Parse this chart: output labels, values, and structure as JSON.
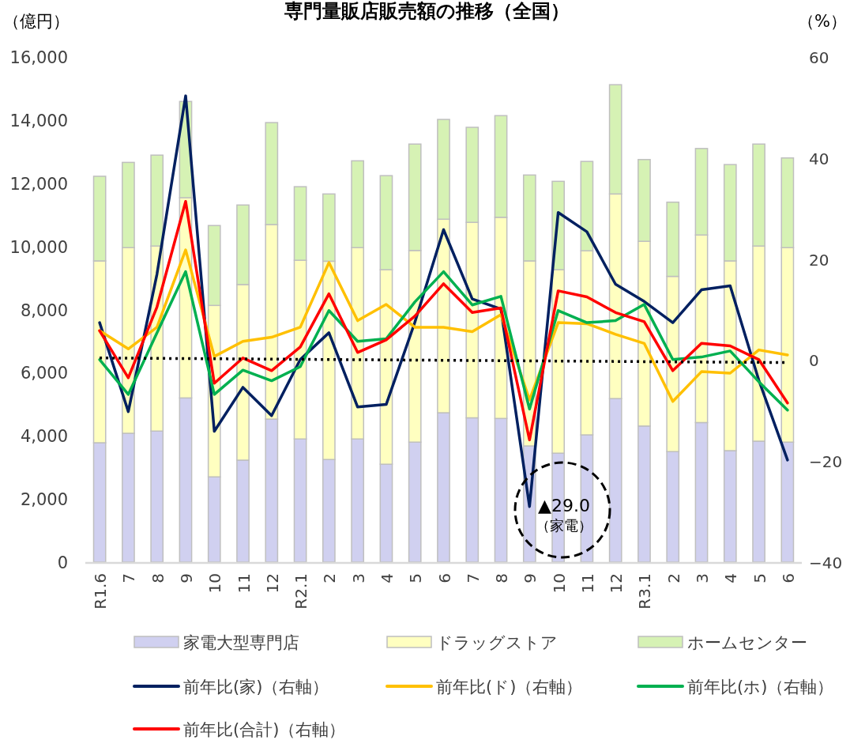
{
  "chart_data": {
    "type": "bar",
    "stacked": true,
    "title": "専門量販店販売額の推移（全国）",
    "ylabel": "（億円）",
    "y2label": "（%）",
    "categories": [
      "R1.6",
      "7",
      "8",
      "9",
      "10",
      "11",
      "12",
      "R2.1",
      "2",
      "3",
      "4",
      "5",
      "6",
      "7",
      "8",
      "9",
      "10",
      "11",
      "12",
      "R3.1",
      "2",
      "3",
      "4",
      "5",
      "6"
    ],
    "ylim": [
      0,
      16000
    ],
    "yticks": [
      0,
      {
        "value": 2000,
        "label": "2,000"
      },
      {
        "value": 4000,
        "label": "4,000"
      },
      {
        "value": 6000,
        "label": "6,000"
      },
      {
        "value": 8000,
        "label": "8,000"
      },
      {
        "value": 10000,
        "label": "10,000"
      },
      {
        "value": 12000,
        "label": "12,000"
      },
      {
        "value": 14000,
        "label": "14,000"
      },
      {
        "value": 16000,
        "label": "16,000"
      }
    ],
    "y2lim": [
      -40,
      60
    ],
    "y2ticks": [
      {
        "value": -40,
        "label": "−40"
      },
      {
        "value": -20,
        "label": "−20"
      },
      0,
      20,
      40,
      60
    ],
    "grid": false,
    "legend": "bottom",
    "series": [
      {
        "name": "家電大型専門店",
        "type": "bar",
        "color": "#d0d0f0",
        "values": [
          3780,
          4080,
          4150,
          5200,
          2700,
          3230,
          4530,
          3900,
          3250,
          3900,
          3100,
          3800,
          4730,
          4570,
          4550,
          3680,
          3450,
          4030,
          5180,
          4310,
          3500,
          4420,
          3530,
          3830,
          3800
        ]
      },
      {
        "name": "ドラッグストア",
        "type": "bar",
        "color": "#ffffc0",
        "values": [
          5760,
          5880,
          5860,
          6340,
          5430,
          5560,
          6160,
          5660,
          6280,
          6060,
          6160,
          6070,
          6130,
          6190,
          6370,
          5860,
          5810,
          5830,
          6480,
          5850,
          5550,
          5940,
          6010,
          6180,
          6160
        ]
      },
      {
        "name": "ホームセンター",
        "type": "bar",
        "color": "#d6f2b4",
        "values": [
          2680,
          2700,
          2880,
          3050,
          2530,
          2520,
          3230,
          2330,
          2130,
          2750,
          2980,
          3370,
          3160,
          3010,
          3220,
          2720,
          2800,
          2830,
          3460,
          2590,
          2350,
          2740,
          3050,
          3230,
          2840
        ]
      },
      {
        "name": "前年比(家)（右軸）",
        "type": "line",
        "axis": "y2",
        "color": "#002060",
        "values": [
          7.4,
          -10.2,
          17.0,
          52.3,
          -14.1,
          -5.4,
          -11.0,
          0.1,
          5.4,
          -9.3,
          -8.8,
          7.5,
          25.8,
          12.1,
          10.1,
          -29.0,
          29.2,
          25.4,
          15.0,
          11.6,
          7.4,
          13.9,
          14.7,
          -4.0,
          -19.8
        ]
      },
      {
        "name": "前年比(ド)（右軸）",
        "type": "line",
        "axis": "y2",
        "color": "#ffc000",
        "values": [
          5.8,
          2.2,
          6.5,
          21.8,
          0.7,
          3.7,
          4.5,
          6.5,
          19.3,
          7.8,
          11.0,
          6.5,
          6.5,
          5.6,
          9.0,
          -7.9,
          7.4,
          7.2,
          5.1,
          3.3,
          -8.2,
          -2.3,
          -2.6,
          2.0,
          1.0
        ]
      },
      {
        "name": "前年比(ホ)（右軸）",
        "type": "line",
        "axis": "y2",
        "color": "#00b050",
        "values": [
          0.1,
          -6.8,
          5.4,
          17.5,
          -6.8,
          -2.0,
          -4.1,
          -1.3,
          9.8,
          3.7,
          4.2,
          11.5,
          17.5,
          10.9,
          12.6,
          -9.7,
          9.8,
          7.4,
          7.8,
          11.0,
          0.1,
          0.6,
          1.8,
          -4.3,
          -9.9
        ]
      },
      {
        "name": "前年比(合計)（右軸）",
        "type": "line",
        "axis": "y2",
        "color": "#ff0000",
        "values": [
          5.8,
          -3.5,
          10.5,
          31.4,
          -4.6,
          0.4,
          -2.1,
          2.6,
          13.1,
          1.5,
          4.0,
          8.7,
          15.1,
          9.4,
          10.3,
          -15.8,
          13.7,
          12.5,
          9.4,
          7.6,
          -2.1,
          3.3,
          2.8,
          0.1,
          -8.5
        ]
      },
      {
        "type": "line",
        "axis": "y2",
        "color": "#000000",
        "line_style": "dotted",
        "values": [
          0.4,
          null,
          null,
          null,
          null,
          null,
          null,
          null,
          null,
          null,
          null,
          null,
          null,
          null,
          null,
          null,
          null,
          null,
          null,
          null,
          null,
          null,
          null,
          null,
          -0.5
        ]
      }
    ],
    "annotations": [
      "▲29.0\n（家電）"
    ]
  }
}
